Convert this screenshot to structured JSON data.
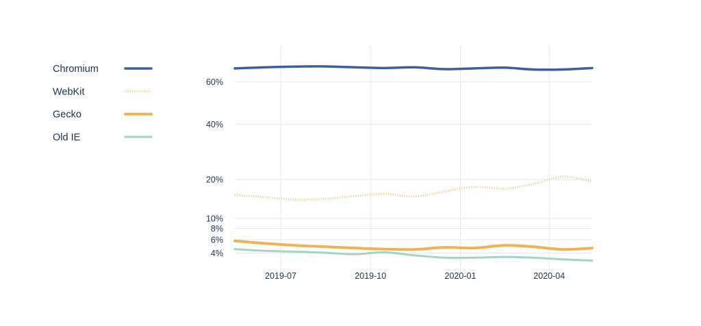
{
  "chart_data": {
    "type": "line",
    "title": "",
    "xlabel": "",
    "ylabel": "",
    "y_scale": "sqrt",
    "ylim": [
      3,
      72
    ],
    "x_range": [
      "2019-05-15",
      "2020-05-15"
    ],
    "grid": true,
    "legend_position": "left",
    "x_ticks": [
      {
        "date": "2019-07-01",
        "label": "2019-07"
      },
      {
        "date": "2019-10-01",
        "label": "2019-10"
      },
      {
        "date": "2020-01-01",
        "label": "2020-01"
      },
      {
        "date": "2020-04-01",
        "label": "2020-04"
      }
    ],
    "y_ticks": [
      {
        "value": 60,
        "label": "60%"
      },
      {
        "value": 40,
        "label": "40%"
      },
      {
        "value": 20,
        "label": "20%"
      },
      {
        "value": 10,
        "label": "10%"
      },
      {
        "value": 8,
        "label": "8%"
      },
      {
        "value": 6,
        "label": "6%"
      },
      {
        "value": 4,
        "label": "4%"
      }
    ],
    "series": [
      {
        "name": "Chromium",
        "color": "#3e5f9a",
        "style": "solid",
        "width": 3.5,
        "points": [
          [
            "2019-05-15",
            67.2
          ],
          [
            "2019-06-15",
            67.8
          ],
          [
            "2019-07-15",
            68.2
          ],
          [
            "2019-08-15",
            68.3
          ],
          [
            "2019-09-15",
            67.8
          ],
          [
            "2019-10-15",
            67.4
          ],
          [
            "2019-11-15",
            67.8
          ],
          [
            "2019-12-15",
            66.8
          ],
          [
            "2020-01-15",
            67.2
          ],
          [
            "2020-02-15",
            67.6
          ],
          [
            "2020-03-15",
            66.6
          ],
          [
            "2020-04-15",
            66.6
          ],
          [
            "2020-05-15",
            67.4
          ]
        ]
      },
      {
        "name": "WebKit",
        "color": "#f3cf8e",
        "style": "dotted",
        "width": 3,
        "points": [
          [
            "2019-05-15",
            15.6
          ],
          [
            "2019-06-15",
            15.0
          ],
          [
            "2019-07-15",
            14.4
          ],
          [
            "2019-08-15",
            14.6
          ],
          [
            "2019-09-15",
            15.3
          ],
          [
            "2019-10-15",
            15.9
          ],
          [
            "2019-11-15",
            15.2
          ],
          [
            "2019-12-15",
            16.5
          ],
          [
            "2020-01-15",
            17.8
          ],
          [
            "2020-02-15",
            17.3
          ],
          [
            "2020-03-15",
            18.6
          ],
          [
            "2020-04-15",
            20.8
          ],
          [
            "2020-05-15",
            19.4
          ]
        ]
      },
      {
        "name": "Gecko",
        "color": "#efb254",
        "style": "solid",
        "width": 4,
        "points": [
          [
            "2019-05-15",
            5.8
          ],
          [
            "2019-06-15",
            5.4
          ],
          [
            "2019-07-15",
            5.1
          ],
          [
            "2019-08-15",
            4.9
          ],
          [
            "2019-09-15",
            4.7
          ],
          [
            "2019-10-15",
            4.55
          ],
          [
            "2019-11-15",
            4.5
          ],
          [
            "2019-12-15",
            4.8
          ],
          [
            "2020-01-15",
            4.7
          ],
          [
            "2020-02-15",
            5.1
          ],
          [
            "2020-03-15",
            4.9
          ],
          [
            "2020-04-15",
            4.5
          ],
          [
            "2020-05-15",
            4.7
          ]
        ]
      },
      {
        "name": "Old IE",
        "color": "#a3d5c0",
        "style": "solid",
        "width": 3,
        "points": [
          [
            "2019-05-15",
            4.55
          ],
          [
            "2019-06-15",
            4.3
          ],
          [
            "2019-07-15",
            4.2
          ],
          [
            "2019-08-15",
            4.05
          ],
          [
            "2019-09-15",
            3.85
          ],
          [
            "2019-10-15",
            4.1
          ],
          [
            "2019-11-15",
            3.7
          ],
          [
            "2019-12-15",
            3.4
          ],
          [
            "2020-01-15",
            3.4
          ],
          [
            "2020-02-15",
            3.5
          ],
          [
            "2020-03-15",
            3.4
          ],
          [
            "2020-04-15",
            3.2
          ],
          [
            "2020-05-15",
            3.05
          ]
        ]
      }
    ]
  }
}
